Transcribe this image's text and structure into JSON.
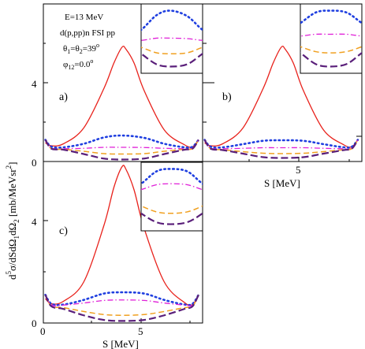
{
  "figure": {
    "annotations": {
      "energy": "E=13 MeV",
      "reaction": "d(p,pp)n   FSI pp",
      "theta_label": "θ",
      "theta_sub1": "1",
      "theta_eq": "=θ",
      "theta_sub2": "2",
      "theta_val": "=39",
      "theta_deg": "o",
      "phi_label": "φ",
      "phi_sub": "12",
      "phi_val": "=0.0",
      "phi_deg": "o"
    },
    "panel_labels": [
      "a)",
      "b)",
      "c)"
    ],
    "ylabel": {
      "d": "d",
      "exp5": "5",
      "sigma": "σ/dSdΩ",
      "s1": "1",
      "dom": "dΩ",
      "s2": "2",
      "unit": " [mb/MeVsr",
      "uexp": "2",
      "close": "]"
    },
    "xlabel": "S [MeV]",
    "x_ticks": [
      "0",
      "5"
    ],
    "y_ticks": [
      "0",
      "4"
    ]
  },
  "chart_data": {
    "type": "line",
    "xlabel": "S [MeV]",
    "ylabel": "d5σ/dSdΩ1dΩ2 [mb/MeVsr2]",
    "xlim": [
      0,
      7.9
    ],
    "ylim": [
      0,
      6.1
    ],
    "panels": [
      {
        "label": "a)",
        "series": [
          {
            "style": "solid",
            "color": "#e8211b",
            "x": [
              0.1,
              0.4,
              1.0,
              2.0,
              3.0,
              3.5,
              3.9,
              4.1,
              4.5,
              5.0,
              6.0,
              7.0,
              7.4,
              7.7
            ],
            "y": [
              0.95,
              0.8,
              0.9,
              1.7,
              3.7,
              5.0,
              5.8,
              5.7,
              5.0,
              3.6,
              1.6,
              0.85,
              0.75,
              1.1
            ]
          },
          {
            "style": "dotted",
            "color": "#1f3fe0",
            "x": [
              0.1,
              0.4,
              1.0,
              2.0,
              3.0,
              3.9,
              5.0,
              6.0,
              7.0,
              7.4,
              7.7
            ],
            "y": [
              1.1,
              0.75,
              0.72,
              0.9,
              1.22,
              1.32,
              1.2,
              0.9,
              0.72,
              0.75,
              1.1
            ]
          },
          {
            "style": "dash-dot",
            "color": "#e020d8",
            "x": [
              0.1,
              0.4,
              1.0,
              2.0,
              3.0,
              3.9,
              5.0,
              6.0,
              7.0,
              7.4,
              7.7
            ],
            "y": [
              1.1,
              0.68,
              0.65,
              0.67,
              0.72,
              0.72,
              0.71,
              0.67,
              0.65,
              0.68,
              1.1
            ]
          },
          {
            "style": "dashed",
            "color": "#f0a020",
            "x": [
              0.1,
              0.4,
              1.0,
              2.0,
              3.0,
              3.9,
              5.0,
              6.0,
              7.0,
              7.4,
              7.7
            ],
            "y": [
              1.1,
              0.65,
              0.62,
              0.52,
              0.4,
              0.38,
              0.4,
              0.52,
              0.62,
              0.65,
              1.1
            ]
          },
          {
            "style": "dashed-long",
            "color": "#5a1f7a",
            "x": [
              0.1,
              0.4,
              1.0,
              2.0,
              3.0,
              3.9,
              5.0,
              6.0,
              7.0,
              7.4,
              7.7
            ],
            "y": [
              1.1,
              0.65,
              0.6,
              0.38,
              0.15,
              0.1,
              0.15,
              0.38,
              0.6,
              0.65,
              1.1
            ]
          }
        ]
      },
      {
        "label": "b)",
        "series": [
          {
            "style": "solid",
            "color": "#e8211b",
            "x": [
              0.1,
              0.4,
              1.0,
              2.0,
              3.0,
              3.5,
              3.9,
              4.1,
              4.5,
              5.0,
              6.0,
              7.0,
              7.4,
              7.7
            ],
            "y": [
              0.95,
              0.8,
              0.9,
              1.7,
              3.7,
              5.0,
              5.8,
              5.7,
              5.0,
              3.6,
              1.6,
              0.85,
              0.75,
              1.1
            ]
          },
          {
            "style": "dotted",
            "color": "#1f3fe0",
            "x": [
              0.1,
              0.4,
              1.0,
              2.0,
              3.0,
              3.9,
              5.0,
              6.0,
              7.0,
              7.4,
              7.7
            ],
            "y": [
              1.1,
              0.75,
              0.72,
              0.88,
              1.05,
              1.08,
              1.05,
              0.88,
              0.72,
              0.75,
              1.1
            ]
          },
          {
            "style": "dash-dot",
            "color": "#e020d8",
            "x": [
              0.1,
              0.4,
              1.0,
              2.0,
              3.0,
              3.9,
              5.0,
              6.0,
              7.0,
              7.4,
              7.7
            ],
            "y": [
              1.1,
              0.68,
              0.65,
              0.67,
              0.7,
              0.7,
              0.7,
              0.67,
              0.65,
              0.68,
              1.1
            ]
          },
          {
            "style": "dashed",
            "color": "#f0a020",
            "x": [
              0.1,
              0.4,
              1.0,
              2.0,
              3.0,
              3.9,
              5.0,
              6.0,
              7.0,
              7.4,
              7.7
            ],
            "y": [
              1.1,
              0.65,
              0.6,
              0.5,
              0.42,
              0.4,
              0.42,
              0.5,
              0.6,
              0.65,
              1.1
            ]
          },
          {
            "style": "dashed-long",
            "color": "#5a1f7a",
            "x": [
              0.1,
              0.4,
              1.0,
              2.0,
              3.0,
              3.9,
              5.0,
              6.0,
              7.0,
              7.4,
              7.7
            ],
            "y": [
              1.1,
              0.65,
              0.58,
              0.4,
              0.22,
              0.18,
              0.22,
              0.4,
              0.58,
              0.65,
              1.1
            ]
          }
        ]
      },
      {
        "label": "c)",
        "series": [
          {
            "style": "solid",
            "color": "#e8211b",
            "x": [
              0.1,
              0.4,
              1.0,
              2.0,
              3.0,
              3.5,
              3.9,
              4.1,
              4.5,
              5.0,
              6.0,
              7.0,
              7.4,
              7.7
            ],
            "y": [
              0.95,
              0.75,
              0.85,
              1.6,
              3.8,
              5.3,
              6.1,
              6.0,
              5.2,
              3.7,
              1.6,
              0.8,
              0.72,
              1.1
            ]
          },
          {
            "style": "dotted",
            "color": "#1f3fe0",
            "x": [
              0.1,
              0.4,
              1.0,
              2.0,
              3.0,
              3.9,
              5.0,
              6.0,
              7.0,
              7.4,
              7.7
            ],
            "y": [
              1.1,
              0.75,
              0.72,
              0.9,
              1.15,
              1.2,
              1.15,
              0.9,
              0.72,
              0.75,
              1.1
            ]
          },
          {
            "style": "dash-dot",
            "color": "#e020d8",
            "x": [
              0.1,
              0.4,
              1.0,
              2.0,
              3.0,
              3.9,
              5.0,
              6.0,
              7.0,
              7.4,
              7.7
            ],
            "y": [
              1.1,
              0.7,
              0.7,
              0.78,
              0.88,
              0.9,
              0.88,
              0.78,
              0.7,
              0.7,
              1.1
            ]
          },
          {
            "style": "dashed",
            "color": "#f0a020",
            "x": [
              0.1,
              0.4,
              1.0,
              2.0,
              3.0,
              3.9,
              5.0,
              6.0,
              7.0,
              7.4,
              7.7
            ],
            "y": [
              1.1,
              0.65,
              0.6,
              0.45,
              0.33,
              0.3,
              0.33,
              0.45,
              0.6,
              0.65,
              1.1
            ]
          },
          {
            "style": "dashed-long",
            "color": "#5a1f7a",
            "x": [
              0.1,
              0.4,
              1.0,
              2.0,
              3.0,
              3.9,
              5.0,
              6.0,
              7.0,
              7.4,
              7.7
            ],
            "y": [
              1.1,
              0.65,
              0.55,
              0.3,
              0.12,
              0.08,
              0.12,
              0.3,
              0.55,
              0.65,
              1.1
            ]
          }
        ]
      }
    ]
  }
}
